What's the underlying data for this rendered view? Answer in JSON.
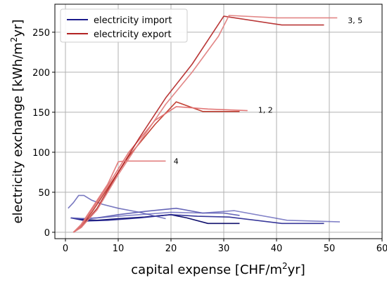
{
  "chart_data": {
    "type": "line",
    "xlabel_main": "capital expense [CHF/m",
    "xlabel_sup": "2",
    "xlabel_end": "yr]",
    "ylabel_main": "electricity exchange [kWh/m",
    "ylabel_sup": "2",
    "ylabel_end": "yr]",
    "xlim": [
      -2,
      60
    ],
    "ylim": [
      -8,
      285
    ],
    "xticks": [
      0,
      10,
      20,
      30,
      40,
      50,
      60
    ],
    "yticks": [
      0,
      50,
      100,
      150,
      200,
      250
    ],
    "grid": true,
    "legend_position": "top-left",
    "legend": [
      {
        "label": "electricity import",
        "color": "#1a1a8c"
      },
      {
        "label": "electricity export",
        "color": "#b22222"
      }
    ],
    "annotations": [
      {
        "text": "3, 5",
        "x": 53.5,
        "y": 265
      },
      {
        "text": "1, 2",
        "x": 36.5,
        "y": 153
      },
      {
        "text": "4",
        "x": 20.5,
        "y": 89
      }
    ],
    "series": [
      {
        "group": "import",
        "color": "#10106e",
        "opacity": 1.0,
        "x": [
          1,
          3,
          6,
          10,
          15,
          20,
          23,
          27,
          33
        ],
        "y": [
          18,
          16,
          15,
          17,
          19,
          22,
          18,
          11,
          11
        ]
      },
      {
        "group": "import",
        "color": "#22228f",
        "opacity": 0.9,
        "x": [
          1,
          4,
          8,
          14,
          20,
          25,
          31,
          41,
          49
        ],
        "y": [
          18,
          14,
          15,
          18,
          22,
          20,
          19,
          11,
          11
        ]
      },
      {
        "group": "import",
        "color": "#4a4aaa",
        "opacity": 0.85,
        "x": [
          1,
          3,
          6,
          10,
          15,
          21,
          26,
          30,
          33
        ],
        "y": [
          18,
          17,
          18,
          22,
          26,
          30,
          24,
          24,
          21
        ]
      },
      {
        "group": "import",
        "color": "#5656b0",
        "opacity": 0.8,
        "x": [
          0.5,
          1.5,
          2.5,
          3.5,
          5,
          7,
          10,
          14,
          19
        ],
        "y": [
          30,
          37,
          46,
          46,
          40,
          35,
          30,
          25,
          17
        ]
      },
      {
        "group": "import",
        "color": "#5a5ab5",
        "opacity": 0.75,
        "x": [
          1,
          4,
          8,
          14,
          20,
          26,
          32,
          42,
          52
        ],
        "y": [
          18,
          17,
          19,
          22,
          25,
          24,
          27,
          15,
          13
        ]
      },
      {
        "group": "export",
        "color": "#c0392b",
        "opacity": 0.95,
        "x": [
          1.5,
          3,
          5,
          8,
          12,
          17,
          21,
          26,
          33
        ],
        "y": [
          0,
          8,
          25,
          55,
          95,
          135,
          163,
          151,
          151
        ]
      },
      {
        "group": "export",
        "color": "#e07070",
        "opacity": 0.95,
        "x": [
          1.5,
          3,
          5,
          8,
          12,
          17,
          21,
          27,
          34.5
        ],
        "y": [
          0,
          8,
          28,
          58,
          100,
          140,
          157,
          154,
          152
        ]
      },
      {
        "group": "export",
        "color": "#b22222",
        "opacity": 0.9,
        "x": [
          1.5,
          3,
          6,
          10,
          14,
          19,
          24,
          30,
          41,
          49
        ],
        "y": [
          0,
          6,
          30,
          75,
          118,
          168,
          210,
          270,
          259,
          259
        ]
      },
      {
        "group": "export",
        "color": "#e08080",
        "opacity": 0.95,
        "x": [
          1.5,
          3,
          6,
          10,
          14,
          19,
          24,
          29,
          31,
          40,
          51.5
        ],
        "y": [
          0,
          6,
          28,
          72,
          112,
          160,
          200,
          245,
          271,
          268,
          268
        ]
      },
      {
        "group": "export",
        "color": "#e07878",
        "opacity": 0.95,
        "x": [
          1.5,
          3,
          6,
          8,
          10,
          11,
          14,
          19
        ],
        "y": [
          0,
          10,
          40,
          60,
          88,
          89,
          89,
          89
        ]
      }
    ]
  }
}
